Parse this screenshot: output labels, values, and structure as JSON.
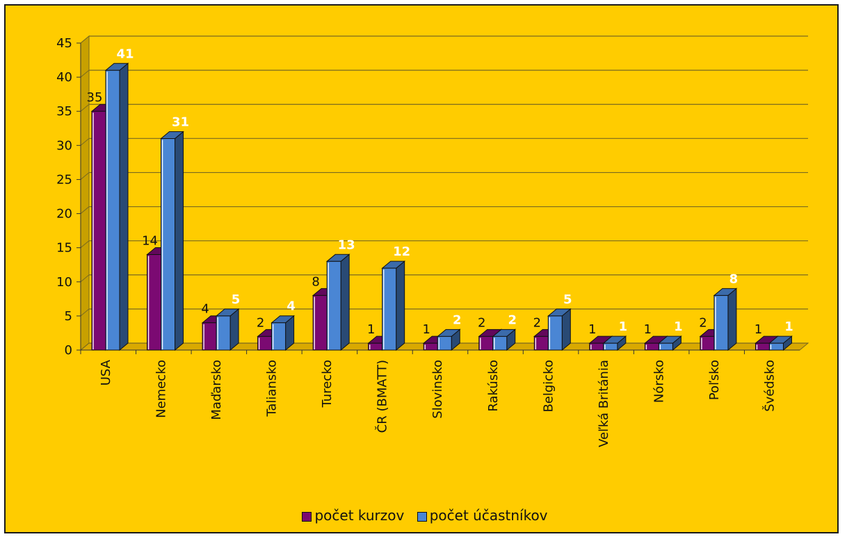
{
  "chart_data": {
    "type": "bar",
    "categories": [
      "USA",
      "Nemecko",
      "Maďarsko",
      "Taliansko",
      "Turecko",
      "ČR (BMATT)",
      "Slovinsko",
      "Rakúsko",
      "Belgicko",
      "Veľká Británia",
      "Nórsko",
      "Poľsko",
      "Švédsko"
    ],
    "series": [
      {
        "name": "počet kurzov",
        "values": [
          35,
          14,
          4,
          2,
          8,
          1,
          1,
          2,
          2,
          1,
          1,
          2,
          1
        ],
        "color": "#7b0a72"
      },
      {
        "name": "počet účastníkov",
        "values": [
          41,
          31,
          5,
          4,
          13,
          12,
          2,
          2,
          5,
          1,
          1,
          8,
          1
        ],
        "color": "#4a86d4"
      }
    ],
    "yticks": [
      "0",
      "5",
      "10",
      "15",
      "20",
      "25",
      "30",
      "35",
      "40",
      "45"
    ],
    "ylim": [
      0,
      45
    ],
    "grid": true,
    "legend_position": "bottom",
    "background_color": "#ffcc00"
  }
}
